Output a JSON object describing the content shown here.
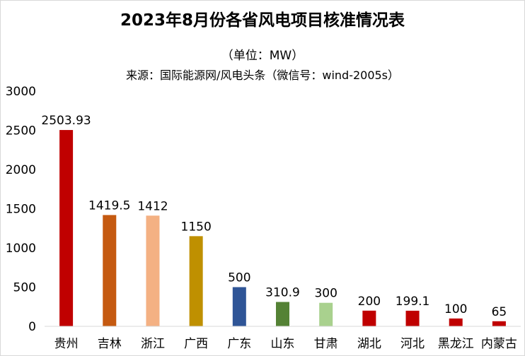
{
  "chart_data": {
    "type": "bar",
    "title": "2023年8月份各省风电项目核准情况表",
    "subtitle": "（单位：MW）",
    "source": "来源：国际能源网/风电头条（微信号：wind-2005s）",
    "categories": [
      "贵州",
      "吉林",
      "浙江",
      "广西",
      "广东",
      "山东",
      "甘肃",
      "湖北",
      "河北",
      "黑龙江",
      "内蒙古"
    ],
    "values": [
      2503.93,
      1419.5,
      1412,
      1150,
      500,
      310.9,
      300,
      200,
      199.1,
      100,
      65
    ],
    "data_labels": [
      "2503.93",
      "1419.5",
      "1412",
      "1150",
      "500",
      "310.9",
      "300",
      "200",
      "199.1",
      "100",
      "65"
    ],
    "colors": [
      "#c00000",
      "#c55a11",
      "#f4b183",
      "#bf9000",
      "#2f5597",
      "#548235",
      "#a9d18e",
      "#c00000",
      "#c00000",
      "#c00000",
      "#c00000"
    ],
    "ylim": [
      0,
      3000
    ],
    "yticks": [
      "0",
      "500",
      "1000",
      "1500",
      "2000",
      "2500",
      "3000"
    ],
    "ytick_values": [
      0,
      500,
      1000,
      1500,
      2000,
      2500,
      3000
    ],
    "grid": false,
    "legend": "none",
    "xlabel": "",
    "ylabel": ""
  }
}
